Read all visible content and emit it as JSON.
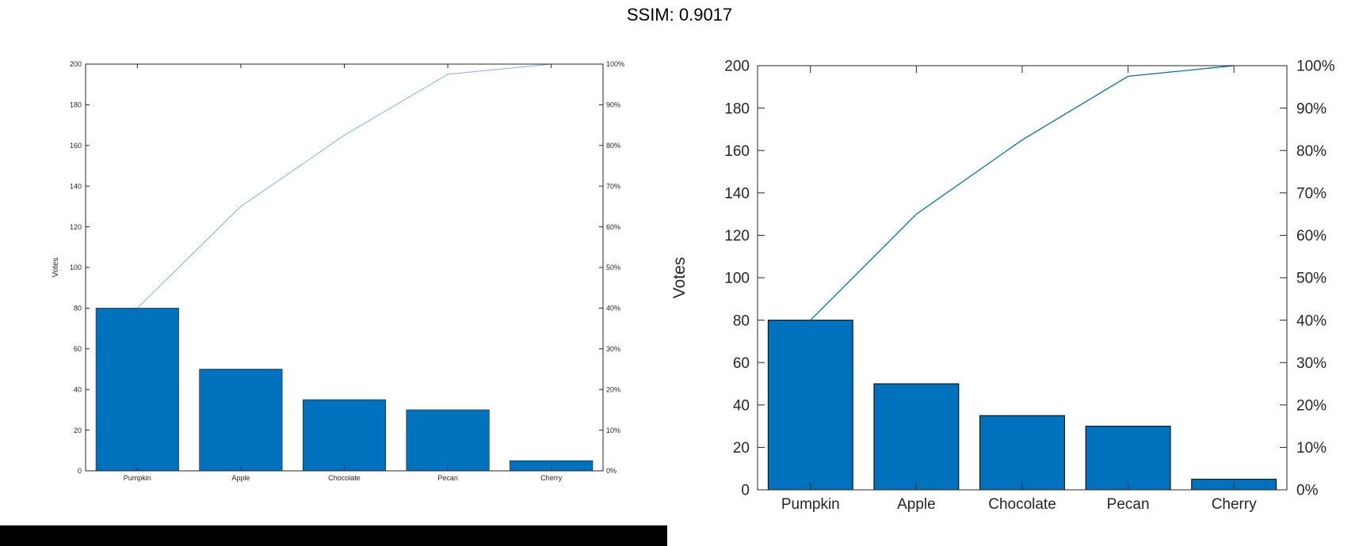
{
  "figure": {
    "title": "SSIM: 0.9017"
  },
  "colors": {
    "bar": "#0072BD",
    "line_left": "#7fb3e0",
    "line_right": "#0072BD",
    "axis": "#262626"
  },
  "chart_data": [
    {
      "type": "bar",
      "categories": [
        "Pumpkin",
        "Apple",
        "Chocolate",
        "Pecan",
        "Cherry"
      ],
      "values": [
        80,
        50,
        35,
        30,
        5
      ],
      "cumulative_percent": [
        40,
        65,
        82.5,
        97.5,
        100
      ],
      "ylabel": "Votes",
      "ylim": [
        0,
        200
      ],
      "yticks": [
        "0",
        "20",
        "40",
        "60",
        "80",
        "100",
        "120",
        "140",
        "160",
        "180",
        "200"
      ],
      "y2ticks": [
        "0%",
        "10%",
        "20%",
        "30%",
        "40%",
        "50%",
        "60%",
        "70%",
        "80%",
        "90%",
        "100%"
      ],
      "grid": false
    },
    {
      "type": "bar",
      "categories": [
        "Pumpkin",
        "Apple",
        "Chocolate",
        "Pecan",
        "Cherry"
      ],
      "values": [
        80,
        50,
        35,
        30,
        5
      ],
      "cumulative_percent": [
        40,
        65,
        82.5,
        97.5,
        100
      ],
      "ylabel": "Votes",
      "ylim": [
        0,
        200
      ],
      "yticks": [
        "0",
        "20",
        "40",
        "60",
        "80",
        "100",
        "120",
        "140",
        "160",
        "180",
        "200"
      ],
      "y2ticks": [
        "0%",
        "10%",
        "20%",
        "30%",
        "40%",
        "50%",
        "60%",
        "70%",
        "80%",
        "90%",
        "100%"
      ],
      "grid": false
    }
  ]
}
